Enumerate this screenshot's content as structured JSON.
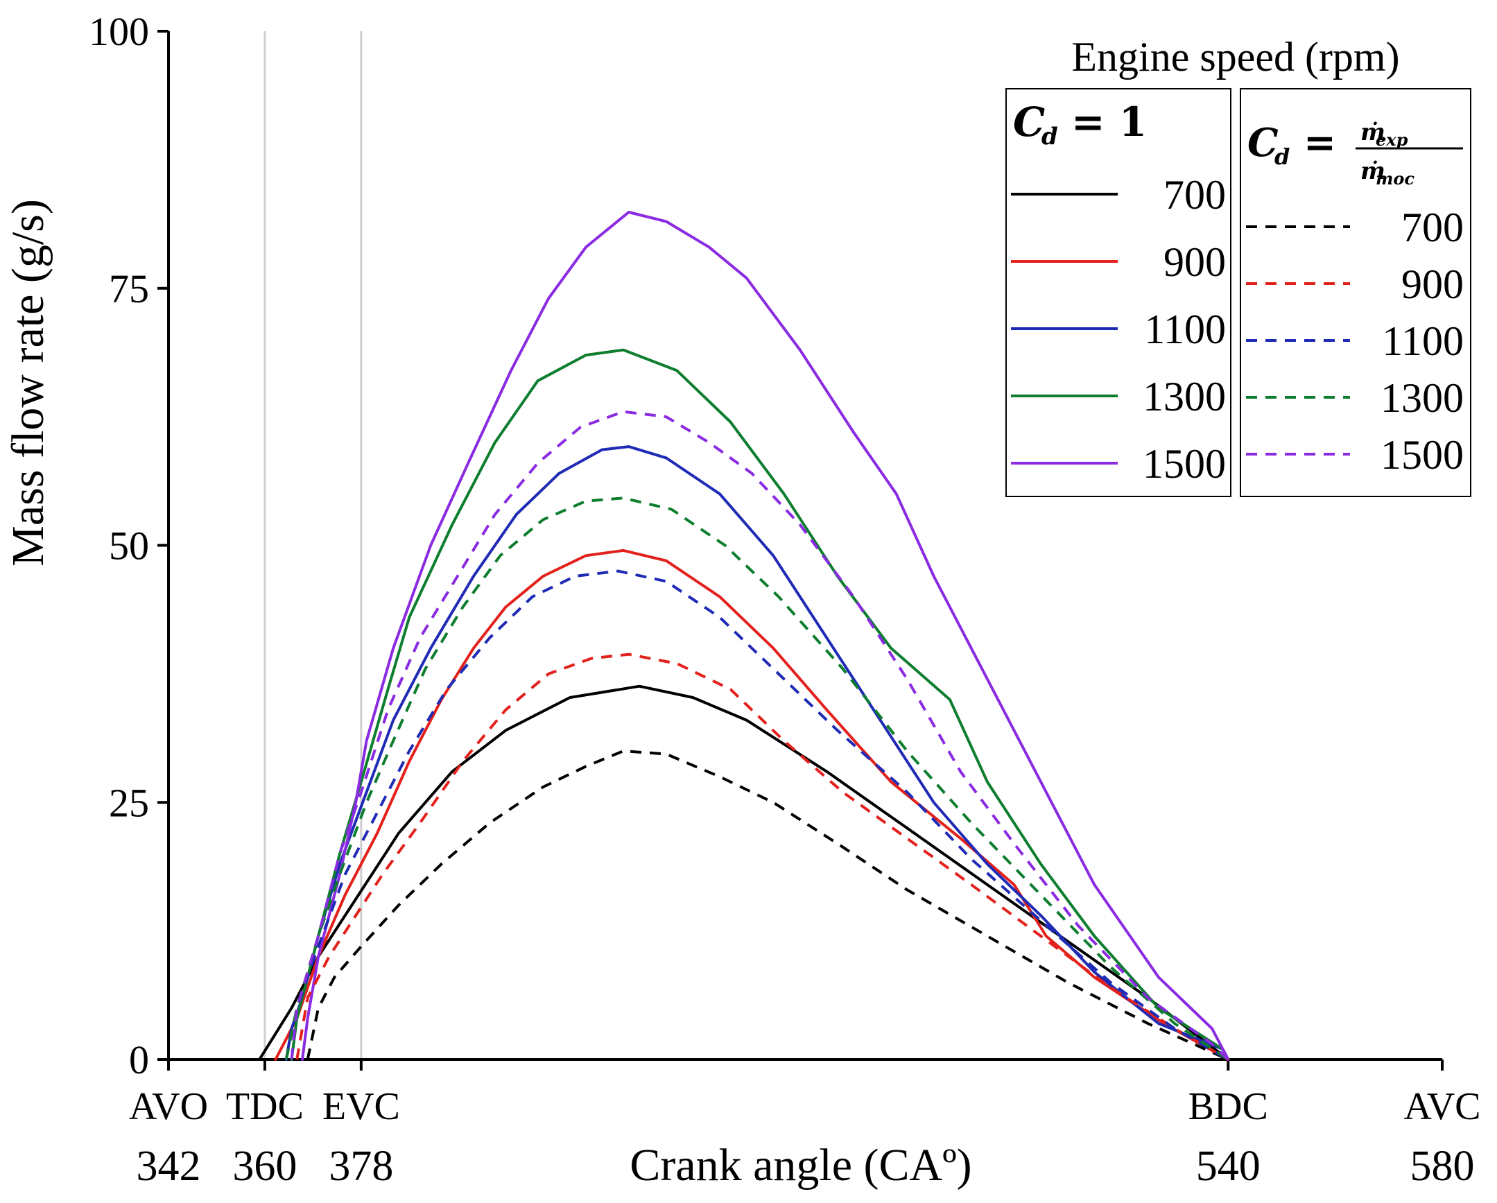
{
  "chart_data": {
    "type": "line",
    "title": "",
    "xlabel": "Crank angle (CAº)",
    "ylabel": "Mass flow rate (g/s)",
    "xlim": [
      342,
      580
    ],
    "ylim": [
      0,
      100
    ],
    "y_ticks": [
      "0",
      "25",
      "50",
      "75",
      "100"
    ],
    "x_ticks": [
      {
        "value": 342,
        "event": "AVO",
        "number": "342"
      },
      {
        "value": 360,
        "event": "TDC",
        "number": "360"
      },
      {
        "value": 378,
        "event": "EVC",
        "number": "378"
      },
      {
        "value": 540,
        "event": "BDC",
        "number": "540"
      },
      {
        "value": 580,
        "event": "AVC",
        "number": "580"
      }
    ],
    "reference_lines_x": [
      360,
      378
    ],
    "legend": {
      "title": "Engine speed (rpm)",
      "group_solid": "C_d = 1",
      "group_dashed": "C_d = ṁ_exp / ṁ_moc",
      "labels": [
        "700",
        "900",
        "1100",
        "1300",
        "1500"
      ],
      "placement": "top-right"
    },
    "series": [
      {
        "name": "700",
        "group": "Cd = 1",
        "style": "solid",
        "color": "#000000",
        "peak": 36.3,
        "points": [
          [
            359,
            0
          ],
          [
            365,
            5
          ],
          [
            370,
            10
          ],
          [
            375,
            14
          ],
          [
            380,
            18
          ],
          [
            385,
            22
          ],
          [
            395,
            28
          ],
          [
            405,
            32
          ],
          [
            417,
            35.2
          ],
          [
            430,
            36.3
          ],
          [
            440,
            35.2
          ],
          [
            450,
            33
          ],
          [
            465,
            28
          ],
          [
            480,
            22.5
          ],
          [
            495,
            17
          ],
          [
            510,
            11.5
          ],
          [
            525,
            6
          ],
          [
            540,
            0
          ]
        ]
      },
      {
        "name": "900",
        "group": "Cd = 1",
        "style": "solid",
        "color": "#e3211c",
        "peak": 49.5,
        "points": [
          [
            362,
            0
          ],
          [
            366,
            4
          ],
          [
            370,
            10
          ],
          [
            375,
            16
          ],
          [
            381,
            22
          ],
          [
            387,
            29
          ],
          [
            393,
            35
          ],
          [
            399,
            40
          ],
          [
            405,
            44
          ],
          [
            412,
            47
          ],
          [
            420,
            49
          ],
          [
            427,
            49.5
          ],
          [
            435,
            48.5
          ],
          [
            445,
            45
          ],
          [
            455,
            40
          ],
          [
            465,
            34
          ],
          [
            477,
            27
          ],
          [
            490,
            21.5
          ],
          [
            500,
            17
          ],
          [
            506,
            12
          ],
          [
            515,
            8
          ],
          [
            528,
            3.5
          ],
          [
            540,
            0
          ]
        ]
      },
      {
        "name": "1100",
        "group": "Cd = 1",
        "style": "solid",
        "color": "#1f2bb5",
        "peak": 59.6,
        "points": [
          [
            364,
            0
          ],
          [
            365,
            3
          ],
          [
            367,
            6
          ],
          [
            370,
            12
          ],
          [
            374,
            19
          ],
          [
            379,
            26
          ],
          [
            384,
            33
          ],
          [
            391,
            40
          ],
          [
            399,
            47
          ],
          [
            407,
            53
          ],
          [
            415,
            57
          ],
          [
            423,
            59.3
          ],
          [
            428,
            59.6
          ],
          [
            435,
            58.5
          ],
          [
            445,
            55
          ],
          [
            455,
            49
          ],
          [
            465,
            41
          ],
          [
            475,
            33
          ],
          [
            485,
            25
          ],
          [
            495,
            19
          ],
          [
            505,
            14
          ],
          [
            515,
            8.5
          ],
          [
            527,
            3.5
          ],
          [
            539,
            1
          ],
          [
            540,
            0
          ]
        ]
      },
      {
        "name": "1300",
        "group": "Cd = 1",
        "style": "solid",
        "color": "#0d7d2e",
        "peak": 69.0,
        "points": [
          [
            365,
            0
          ],
          [
            366,
            4
          ],
          [
            370,
            12
          ],
          [
            374,
            20
          ],
          [
            378,
            27
          ],
          [
            383,
            36
          ],
          [
            387,
            43
          ],
          [
            395,
            52
          ],
          [
            403,
            60
          ],
          [
            411,
            66
          ],
          [
            420,
            68.5
          ],
          [
            427,
            69
          ],
          [
            437,
            67
          ],
          [
            447,
            62
          ],
          [
            457,
            55
          ],
          [
            467,
            47
          ],
          [
            477,
            40
          ],
          [
            488,
            35
          ],
          [
            495,
            27
          ],
          [
            505,
            19
          ],
          [
            515,
            12
          ],
          [
            527,
            5
          ],
          [
            539,
            1
          ],
          [
            540,
            0
          ]
        ]
      },
      {
        "name": "1500",
        "group": "Cd = 1",
        "style": "solid",
        "color": "#8a2be2",
        "peak": 82.4,
        "points": [
          [
            367,
            0
          ],
          [
            368,
            4
          ],
          [
            370,
            10
          ],
          [
            374,
            18
          ],
          [
            377,
            25
          ],
          [
            379,
            31
          ],
          [
            384,
            40
          ],
          [
            391,
            50
          ],
          [
            398,
            58
          ],
          [
            406,
            67
          ],
          [
            413,
            74
          ],
          [
            420,
            79
          ],
          [
            428,
            82.4
          ],
          [
            435,
            81.5
          ],
          [
            443,
            79
          ],
          [
            450,
            76
          ],
          [
            460,
            69
          ],
          [
            470,
            61
          ],
          [
            478,
            55
          ],
          [
            485,
            47
          ],
          [
            495,
            37
          ],
          [
            505,
            27
          ],
          [
            515,
            17
          ],
          [
            527,
            8
          ],
          [
            537,
            3
          ],
          [
            540,
            0
          ]
        ]
      },
      {
        "name": "700",
        "group": "Cd = ṁexp/ṁmoc",
        "style": "dashed",
        "color": "#000000",
        "peak": 30.0,
        "points": [
          [
            368,
            0
          ],
          [
            370,
            5
          ],
          [
            373,
            8
          ],
          [
            378,
            11
          ],
          [
            385,
            15
          ],
          [
            393,
            19
          ],
          [
            402,
            23
          ],
          [
            412,
            26.5
          ],
          [
            420,
            28.5
          ],
          [
            427,
            30
          ],
          [
            435,
            29.7
          ],
          [
            445,
            27.5
          ],
          [
            455,
            25
          ],
          [
            467,
            21
          ],
          [
            480,
            16.5
          ],
          [
            495,
            12
          ],
          [
            510,
            7.5
          ],
          [
            525,
            3.5
          ],
          [
            540,
            0
          ]
        ]
      },
      {
        "name": "900",
        "group": "Cd = ṁexp/ṁmoc",
        "style": "dashed",
        "color": "#e3211c",
        "peak": 39.4,
        "points": [
          [
            366,
            0
          ],
          [
            368,
            6
          ],
          [
            372,
            10
          ],
          [
            377,
            14
          ],
          [
            382,
            18
          ],
          [
            389,
            23
          ],
          [
            397,
            29
          ],
          [
            405,
            34
          ],
          [
            413,
            37.5
          ],
          [
            421,
            39
          ],
          [
            428,
            39.4
          ],
          [
            437,
            38.5
          ],
          [
            447,
            36
          ],
          [
            457,
            31
          ],
          [
            468,
            26
          ],
          [
            480,
            21.5
          ],
          [
            492,
            17
          ],
          [
            505,
            12
          ],
          [
            518,
            7
          ],
          [
            530,
            3
          ],
          [
            540,
            0
          ]
        ]
      },
      {
        "name": "1100",
        "group": "Cd = ṁexp/ṁmoc",
        "style": "dashed",
        "color": "#1f2bb5",
        "peak": 47.5,
        "points": [
          [
            364,
            0
          ],
          [
            366,
            5
          ],
          [
            370,
            11
          ],
          [
            375,
            18
          ],
          [
            380,
            23
          ],
          [
            387,
            30
          ],
          [
            394,
            36
          ],
          [
            402,
            41
          ],
          [
            410,
            45
          ],
          [
            418,
            47
          ],
          [
            426,
            47.5
          ],
          [
            435,
            46.5
          ],
          [
            445,
            43
          ],
          [
            455,
            38
          ],
          [
            467,
            32
          ],
          [
            480,
            26
          ],
          [
            492,
            19.5
          ],
          [
            505,
            13.5
          ],
          [
            518,
            7.5
          ],
          [
            530,
            3
          ],
          [
            540,
            0
          ]
        ]
      },
      {
        "name": "1300",
        "group": "Cd = ṁexp/ṁmoc",
        "style": "dashed",
        "color": "#0d7d2e",
        "peak": 54.6,
        "points": [
          [
            364,
            0
          ],
          [
            366,
            5
          ],
          [
            370,
            12
          ],
          [
            374,
            18
          ],
          [
            379,
            25
          ],
          [
            384,
            31
          ],
          [
            390,
            38
          ],
          [
            397,
            44
          ],
          [
            404,
            49
          ],
          [
            412,
            52.5
          ],
          [
            420,
            54.3
          ],
          [
            427,
            54.6
          ],
          [
            436,
            53.5
          ],
          [
            446,
            50
          ],
          [
            456,
            45
          ],
          [
            468,
            38
          ],
          [
            480,
            30
          ],
          [
            492,
            23
          ],
          [
            505,
            16
          ],
          [
            518,
            9
          ],
          [
            530,
            3.5
          ],
          [
            540,
            0
          ]
        ]
      },
      {
        "name": "1500",
        "group": "Cd = ṁexp/ṁmoc",
        "style": "dashed",
        "color": "#8a2be2",
        "peak": 63.0,
        "points": [
          [
            365,
            0
          ],
          [
            366,
            5
          ],
          [
            370,
            12
          ],
          [
            374,
            20
          ],
          [
            378,
            26
          ],
          [
            383,
            34
          ],
          [
            389,
            41
          ],
          [
            396,
            47
          ],
          [
            403,
            53
          ],
          [
            411,
            58
          ],
          [
            419,
            61.5
          ],
          [
            427,
            63
          ],
          [
            435,
            62.5
          ],
          [
            443,
            60
          ],
          [
            451,
            57
          ],
          [
            460,
            52
          ],
          [
            470,
            45
          ],
          [
            480,
            37
          ],
          [
            490,
            28
          ],
          [
            500,
            21
          ],
          [
            512,
            13
          ],
          [
            525,
            6
          ],
          [
            537,
            1.5
          ],
          [
            540,
            0
          ]
        ]
      }
    ]
  }
}
